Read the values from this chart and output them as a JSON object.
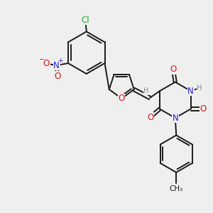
{
  "bg_color": "#efefef",
  "bond_color": "#1a1a1a",
  "bond_width": 1.4,
  "atom_colors": {
    "O": "#dd1111",
    "N": "#2222cc",
    "Cl": "#22aa22",
    "H": "#888888",
    "C": "#1a1a1a"
  },
  "font_size_atom": 8.5,
  "font_size_small": 7.0,
  "font_size_ch3": 7.5
}
